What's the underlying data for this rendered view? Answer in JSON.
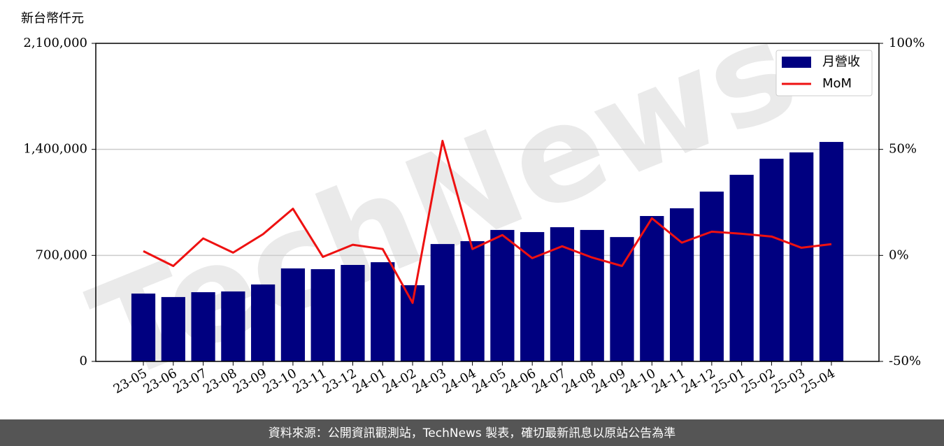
{
  "chart_data": {
    "type": "bar_line",
    "y_label": "新台幣仟元",
    "watermark": "TechNews",
    "source": "資料來源：公開資訊觀測站，TechNews 製表，確切最新訊息以原站公告為準",
    "categories": [
      "23-05",
      "23-06",
      "23-07",
      "23-08",
      "23-09",
      "23-10",
      "23-11",
      "23-12",
      "24-01",
      "24-02",
      "24-03",
      "24-04",
      "24-05",
      "24-06",
      "24-07",
      "24-08",
      "24-09",
      "24-10",
      "24-11",
      "24-12",
      "25-01",
      "25-02",
      "25-03",
      "25-04"
    ],
    "series": [
      {
        "name": "月營收",
        "color": "#000080",
        "type": "bar",
        "values": [
          448000,
          425000,
          457000,
          462000,
          508000,
          614000,
          609000,
          637000,
          655000,
          503000,
          775000,
          794000,
          868000,
          854000,
          886000,
          868000,
          821000,
          960000,
          1011000,
          1121000,
          1232000,
          1338000,
          1380000,
          1449000
        ]
      },
      {
        "name": "MoM",
        "color": "#ee1111",
        "type": "line",
        "axis": "y2",
        "values": [
          2,
          -5,
          8,
          1.3,
          10,
          22,
          -0.7,
          5,
          3,
          -22.4,
          54,
          3,
          9.6,
          -1.3,
          4.3,
          -1,
          -5,
          17.5,
          6,
          11.2,
          10.2,
          8.9,
          3.6,
          5.3
        ]
      }
    ],
    "ylim": [
      0,
      2100000
    ],
    "yticks": [
      0,
      {
        "value": 700000,
        "label": "700,000"
      },
      {
        "value": 1400000,
        "label": "1,400,000"
      },
      {
        "value": 2100000,
        "label": "2,100,000"
      }
    ],
    "y2lim": [
      -50,
      100
    ],
    "y2ticks": [
      {
        "value": -50,
        "label": "-50%"
      },
      {
        "value": 0,
        "label": "0%"
      },
      {
        "value": 50,
        "label": "50%"
      },
      {
        "value": 100,
        "label": "100%"
      }
    ],
    "grid": true,
    "legend": "upper right"
  }
}
